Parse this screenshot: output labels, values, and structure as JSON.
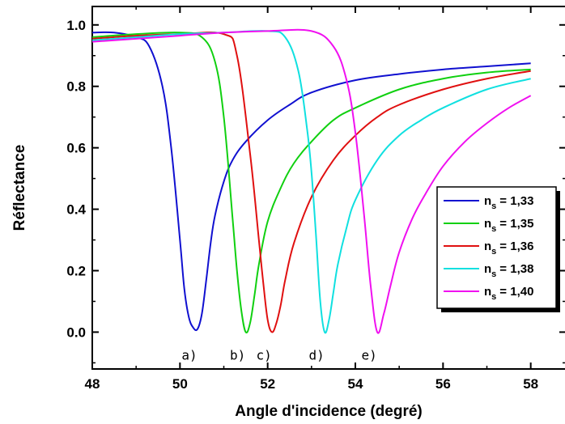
{
  "chart_data": {
    "type": "line",
    "title": "",
    "xlabel": "Angle d'incidence (degré)",
    "ylabel": "Réflectance",
    "xlim": [
      48,
      58.8
    ],
    "ylim": [
      -0.12,
      1.06
    ],
    "xticks": [
      "48",
      "50",
      "52",
      "54",
      "56",
      "58"
    ],
    "yticks": [
      "0.0",
      "0.2",
      "0.4",
      "0.6",
      "0.8",
      "1.0"
    ],
    "grid": false,
    "legend_position": "right",
    "series": [
      {
        "name": "n",
        "subscript": "s",
        "value": "= 1,33",
        "color": "#1010d0",
        "annotation": "a)",
        "x": [
          48.0,
          48.5,
          49.0,
          49.3,
          49.6,
          49.8,
          50.0,
          50.1,
          50.2,
          50.3,
          50.4,
          50.5,
          50.6,
          50.7,
          50.8,
          51.0,
          51.2,
          51.5,
          52.0,
          52.5,
          53.0,
          54.0,
          55.0,
          56.0,
          57.0,
          58.0
        ],
        "y": [
          0.975,
          0.975,
          0.96,
          0.93,
          0.8,
          0.6,
          0.3,
          0.14,
          0.05,
          0.015,
          0.01,
          0.06,
          0.17,
          0.29,
          0.38,
          0.49,
          0.56,
          0.62,
          0.69,
          0.74,
          0.78,
          0.82,
          0.84,
          0.855,
          0.865,
          0.875
        ]
      },
      {
        "name": "n",
        "subscript": "s",
        "value": "= 1,35",
        "color": "#10d010",
        "annotation": "b)",
        "x": [
          48.0,
          49.0,
          50.0,
          50.5,
          50.8,
          51.0,
          51.2,
          51.3,
          51.4,
          51.5,
          51.6,
          51.7,
          51.8,
          52.0,
          52.3,
          52.6,
          53.0,
          53.5,
          54.0,
          55.0,
          56.0,
          57.0,
          58.0
        ],
        "y": [
          0.96,
          0.97,
          0.975,
          0.96,
          0.88,
          0.7,
          0.37,
          0.2,
          0.07,
          0.0,
          0.03,
          0.12,
          0.22,
          0.36,
          0.47,
          0.55,
          0.62,
          0.69,
          0.73,
          0.79,
          0.825,
          0.845,
          0.855
        ]
      },
      {
        "name": "n",
        "subscript": "s",
        "value": "= 1,36",
        "color": "#e01010",
        "annotation": "c)",
        "x": [
          48.0,
          49.0,
          50.0,
          51.0,
          51.3,
          51.6,
          51.8,
          51.9,
          52.0,
          52.1,
          52.2,
          52.3,
          52.4,
          52.6,
          53.0,
          53.5,
          54.0,
          54.5,
          55.0,
          56.0,
          57.0,
          58.0
        ],
        "y": [
          0.955,
          0.965,
          0.97,
          0.97,
          0.9,
          0.58,
          0.3,
          0.16,
          0.04,
          0.0,
          0.03,
          0.09,
          0.17,
          0.29,
          0.44,
          0.56,
          0.64,
          0.7,
          0.74,
          0.79,
          0.825,
          0.85
        ]
      },
      {
        "name": "n",
        "subscript": "s",
        "value": "= 1,38",
        "color": "#10e0e0",
        "annotation": "d)",
        "x": [
          48.0,
          49.0,
          50.0,
          51.0,
          52.0,
          52.4,
          52.7,
          52.9,
          53.0,
          53.1,
          53.2,
          53.3,
          53.4,
          53.5,
          53.6,
          53.8,
          54.0,
          54.5,
          55.0,
          55.5,
          56.0,
          57.0,
          58.0
        ],
        "y": [
          0.95,
          0.96,
          0.97,
          0.975,
          0.98,
          0.96,
          0.85,
          0.66,
          0.52,
          0.32,
          0.1,
          0.0,
          0.04,
          0.13,
          0.22,
          0.34,
          0.43,
          0.56,
          0.64,
          0.69,
          0.73,
          0.79,
          0.825
        ]
      },
      {
        "name": "n",
        "subscript": "s",
        "value": "= 1,40",
        "color": "#f010f0",
        "annotation": "e)",
        "x": [
          48.0,
          49.0,
          50.0,
          51.0,
          52.0,
          53.0,
          53.5,
          53.8,
          54.0,
          54.2,
          54.35,
          54.5,
          54.65,
          54.8,
          55.0,
          55.3,
          55.6,
          56.0,
          56.5,
          57.0,
          57.5,
          58.0
        ],
        "y": [
          0.945,
          0.955,
          0.965,
          0.975,
          0.98,
          0.98,
          0.93,
          0.82,
          0.65,
          0.38,
          0.15,
          0.0,
          0.06,
          0.15,
          0.26,
          0.37,
          0.45,
          0.54,
          0.62,
          0.68,
          0.73,
          0.77
        ]
      }
    ]
  }
}
